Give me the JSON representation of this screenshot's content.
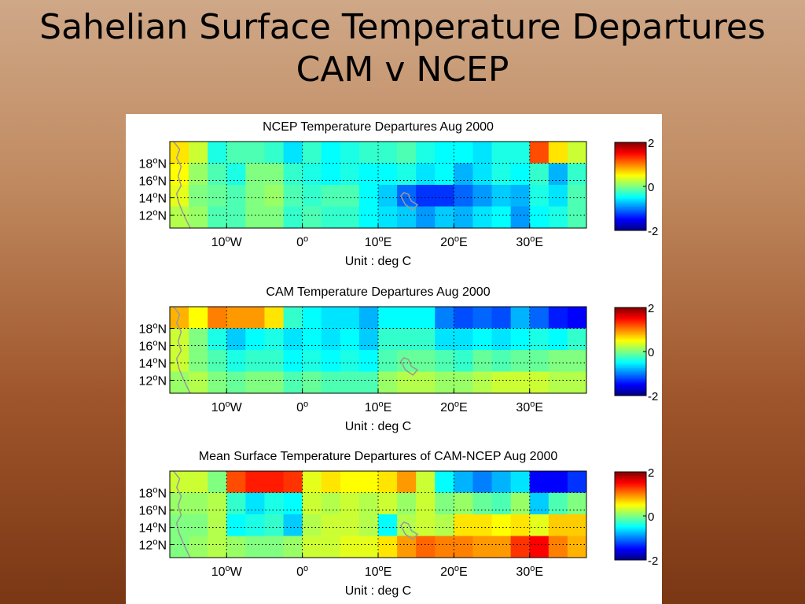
{
  "slide": {
    "title_line1": "Sahelian Surface Temperature Departures",
    "title_line2": "CAM v NCEP"
  },
  "colormap": "jet",
  "chart_data": [
    {
      "type": "heatmap",
      "title": "NCEP Temperature Departures  Aug 2000",
      "xlabel": "Unit : deg C",
      "x_ticks": [
        "10°W",
        "0°",
        "10°E",
        "20°E",
        "30°E"
      ],
      "y_ticks": [
        "18°N",
        "16°N",
        "14°N",
        "12°N"
      ],
      "xlim": [
        -17.5,
        37.5
      ],
      "ylim": [
        10.5,
        20.5
      ],
      "x_centers": [
        -16.25,
        -13.75,
        -11.25,
        -8.75,
        -6.25,
        -3.75,
        -1.25,
        1.25,
        3.75,
        6.25,
        8.75,
        11.25,
        13.75,
        16.25,
        18.75,
        21.25,
        23.75,
        26.25,
        28.75,
        31.25,
        33.75,
        36.25
      ],
      "y_centers": [
        19.25,
        16.75,
        14.25,
        11.75
      ],
      "colorbar_ticks": [
        "2",
        "0",
        "-2"
      ],
      "clim": [
        -2,
        2
      ],
      "grid": true,
      "values": [
        [
          0.6,
          0.3,
          -0.4,
          -0.2,
          -0.2,
          -0.3,
          -0.6,
          -0.3,
          -0.5,
          -0.4,
          -0.3,
          -0.3,
          -0.2,
          -0.4,
          -0.5,
          -0.5,
          -0.6,
          -0.4,
          -0.4,
          1.2,
          0.6,
          0.3
        ],
        [
          0.5,
          0.1,
          -0.2,
          -0.4,
          0.0,
          0.0,
          -0.3,
          -0.4,
          -0.5,
          -0.4,
          -0.5,
          -0.5,
          -0.4,
          -0.6,
          -0.5,
          -0.8,
          -0.6,
          -0.4,
          -0.5,
          -0.3,
          -0.8,
          -0.3
        ],
        [
          0.4,
          0.0,
          -0.1,
          -0.2,
          0.0,
          0.1,
          -0.2,
          -0.3,
          -0.2,
          -0.2,
          -0.5,
          -0.7,
          -1.1,
          -1.3,
          -1.3,
          -1.1,
          -0.9,
          -0.7,
          -0.8,
          -0.4,
          -0.6,
          -0.2
        ],
        [
          0.2,
          0.1,
          -0.2,
          -0.2,
          0.0,
          0.0,
          -0.3,
          -0.2,
          -0.3,
          -0.3,
          -0.5,
          -0.6,
          -0.7,
          -0.9,
          -0.7,
          -0.8,
          -0.6,
          -0.5,
          -0.9,
          -0.5,
          -0.4,
          -0.2
        ]
      ]
    },
    {
      "type": "heatmap",
      "title": "CAM Temperature Departures  Aug 2000",
      "xlabel": "Unit : deg C",
      "x_ticks": [
        "10°W",
        "0°",
        "10°E",
        "20°E",
        "30°E"
      ],
      "y_ticks": [
        "18°N",
        "16°N",
        "14°N",
        "12°N"
      ],
      "xlim": [
        -17.5,
        37.5
      ],
      "ylim": [
        10.5,
        20.5
      ],
      "x_centers": [
        -16.25,
        -13.75,
        -11.25,
        -8.75,
        -6.25,
        -3.75,
        -1.25,
        1.25,
        3.75,
        6.25,
        8.75,
        11.25,
        13.75,
        16.25,
        18.75,
        21.25,
        23.75,
        26.25,
        28.75,
        31.25,
        33.75,
        36.25
      ],
      "y_centers": [
        19.25,
        16.75,
        14.25,
        11.75
      ],
      "colorbar_ticks": [
        "2",
        "0",
        "-2"
      ],
      "clim": [
        -2,
        2
      ],
      "grid": true,
      "values": [
        [
          0.8,
          0.5,
          1.0,
          0.9,
          0.9,
          0.6,
          -0.3,
          -0.5,
          -0.6,
          -0.6,
          -0.8,
          -0.5,
          -0.5,
          -0.5,
          -1.0,
          -1.2,
          -1.1,
          -1.2,
          -0.8,
          -1.1,
          -1.4,
          -1.5
        ],
        [
          0.3,
          0.0,
          -0.4,
          -0.7,
          -0.5,
          -0.4,
          -0.6,
          -0.5,
          -0.6,
          -0.5,
          -0.7,
          -0.3,
          -0.3,
          -0.3,
          -0.6,
          -0.6,
          -0.5,
          -0.6,
          -0.5,
          -0.4,
          -0.5,
          -0.3
        ],
        [
          0.3,
          0.0,
          -0.2,
          -0.4,
          -0.3,
          -0.3,
          -0.5,
          -0.4,
          -0.5,
          -0.4,
          -0.5,
          -0.2,
          -0.1,
          -0.1,
          -0.2,
          -0.3,
          -0.1,
          -0.2,
          -0.1,
          -0.1,
          0.0,
          0.0
        ],
        [
          0.1,
          0.2,
          0.0,
          -0.1,
          0.0,
          0.0,
          -0.2,
          -0.1,
          -0.2,
          -0.2,
          -0.2,
          0.1,
          0.2,
          0.2,
          0.1,
          0.1,
          0.2,
          0.3,
          0.3,
          0.3,
          0.2,
          0.2
        ]
      ]
    },
    {
      "type": "heatmap",
      "title": "Mean Surface Temperature Departures of CAM-NCEP  Aug 2000",
      "xlabel": "Unit : deg C",
      "x_ticks": [
        "10°W",
        "0°",
        "10°E",
        "20°E",
        "30°E"
      ],
      "y_ticks": [
        "18°N",
        "16°N",
        "14°N",
        "12°N"
      ],
      "xlim": [
        -17.5,
        37.5
      ],
      "ylim": [
        10.5,
        20.5
      ],
      "x_centers": [
        -16.25,
        -13.75,
        -11.25,
        -8.75,
        -6.25,
        -3.75,
        -1.25,
        1.25,
        3.75,
        6.25,
        8.75,
        11.25,
        13.75,
        16.25,
        18.75,
        21.25,
        23.75,
        26.25,
        28.75,
        31.25,
        33.75,
        36.25
      ],
      "y_centers": [
        19.25,
        16.75,
        14.25,
        11.75
      ],
      "colorbar_ticks": [
        "2",
        "0",
        "-2"
      ],
      "clim": [
        -2,
        2
      ],
      "grid": true,
      "values": [
        [
          0.3,
          0.3,
          0.0,
          1.2,
          1.4,
          1.4,
          1.3,
          0.4,
          0.6,
          0.5,
          0.5,
          0.6,
          0.9,
          0.3,
          -0.5,
          -0.8,
          -1.0,
          -0.8,
          -0.6,
          -1.5,
          -1.5,
          -1.3
        ],
        [
          0.1,
          0.1,
          0.2,
          -0.3,
          -0.6,
          -0.4,
          -0.5,
          0.3,
          0.2,
          0.3,
          0.2,
          0.3,
          0.1,
          0.3,
          0.0,
          0.1,
          -0.1,
          -0.2,
          0.1,
          -0.7,
          -0.2,
          0.0
        ],
        [
          0.0,
          0.0,
          0.2,
          -0.5,
          -0.4,
          -0.3,
          -0.7,
          0.2,
          0.3,
          0.3,
          0.2,
          -0.5,
          0.2,
          0.3,
          0.2,
          0.6,
          0.6,
          0.5,
          0.6,
          0.4,
          0.7,
          0.7
        ],
        [
          0.0,
          0.1,
          0.2,
          0.1,
          0.0,
          0.0,
          0.1,
          0.3,
          0.3,
          0.4,
          0.4,
          0.6,
          0.9,
          1.1,
          1.0,
          1.0,
          0.9,
          0.9,
          1.3,
          1.5,
          1.0,
          0.8
        ]
      ]
    }
  ]
}
